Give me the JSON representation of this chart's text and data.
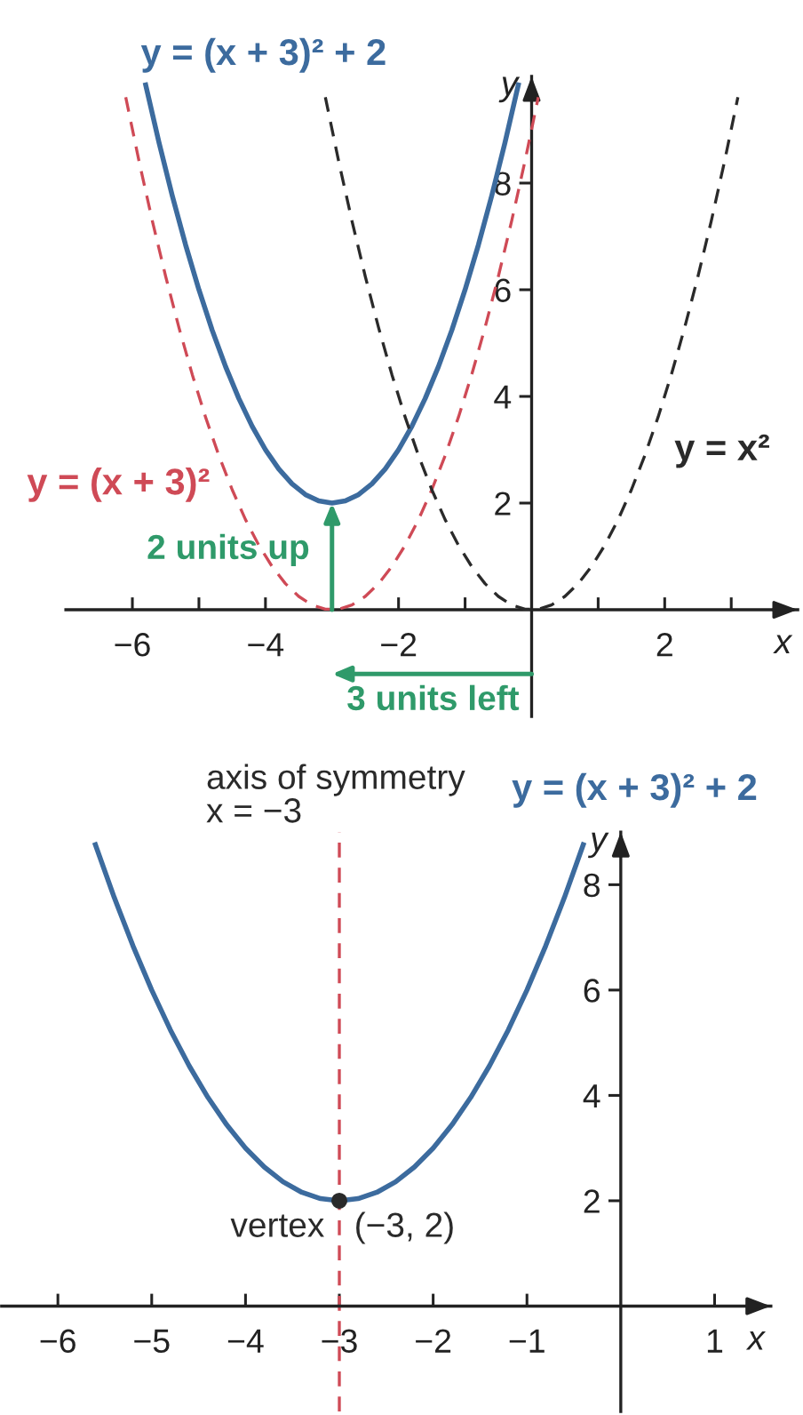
{
  "chart_data": [
    {
      "type": "line",
      "xlabel": "x",
      "ylabel": "y",
      "xlim": [
        -7,
        4
      ],
      "ylim": [
        -2,
        10
      ],
      "xticks": [
        {
          "value": -6,
          "label": "−6"
        },
        {
          "value": -5,
          "label": null
        },
        {
          "value": -4,
          "label": "−4"
        },
        {
          "value": -3,
          "label": null
        },
        {
          "value": -2,
          "label": "−2"
        },
        {
          "value": -1,
          "label": null
        },
        {
          "value": 1,
          "label": null
        },
        2,
        {
          "value": 3,
          "label": null
        }
      ],
      "yticks": [
        2,
        4,
        6,
        8
      ],
      "series": [
        {
          "name": "y = (x + 3)² + 2",
          "color": "#3c6b9e",
          "line_style": "solid",
          "x": [
            -5.8,
            -5.6,
            -5.4,
            -5.2,
            -5.0,
            -4.8,
            -4.6,
            -4.4,
            -4.2,
            -4.0,
            -3.8,
            -3.6,
            -3.4,
            -3.2,
            -3.0,
            -2.8,
            -2.6,
            -2.4,
            -2.2,
            -2.0,
            -1.8,
            -1.6,
            -1.4,
            -1.2,
            -1.0,
            -0.8,
            -0.6,
            -0.4,
            -0.2
          ],
          "values": [
            9.84,
            8.76,
            7.76,
            6.84,
            6,
            5.24,
            4.56,
            3.96,
            3.44,
            3,
            2.64,
            2.36,
            2.16,
            2.04,
            2,
            2.04,
            2.16,
            2.36,
            2.64,
            3,
            3.44,
            3.96,
            4.56,
            5.24,
            6,
            6.84,
            7.76,
            8.76,
            9.84
          ]
        },
        {
          "name": "y = (x + 3)²",
          "color": "#cf4a56",
          "line_style": "dashed",
          "x": [
            -6.1,
            -5.9,
            -5.7,
            -5.5,
            -5.3,
            -5.1,
            -4.9,
            -4.7,
            -4.5,
            -4.3,
            -4.1,
            -3.9,
            -3.7,
            -3.5,
            -3.3,
            -3.1,
            -2.9,
            -2.7,
            -2.5,
            -2.3,
            -2.1,
            -1.9,
            -1.7,
            -1.5,
            -1.3,
            -1.1,
            -0.9,
            -0.7,
            -0.5,
            -0.3,
            -0.1,
            0.1
          ],
          "values": [
            9.61,
            8.41,
            7.29,
            6.25,
            5.29,
            4.41,
            3.61,
            2.89,
            2.25,
            1.69,
            1.21,
            0.81,
            0.49,
            0.25,
            0.09,
            0.01,
            0.01,
            0.09,
            0.25,
            0.49,
            0.81,
            1.21,
            1.69,
            2.25,
            2.89,
            3.61,
            4.41,
            5.29,
            6.25,
            7.29,
            8.41,
            9.61
          ]
        },
        {
          "name": "y = x²",
          "color": "#2a2a2a",
          "line_style": "dashed",
          "x": [
            -3.1,
            -2.9,
            -2.7,
            -2.5,
            -2.3,
            -2.1,
            -1.9,
            -1.7,
            -1.5,
            -1.3,
            -1.1,
            -0.9,
            -0.7,
            -0.5,
            -0.3,
            -0.1,
            0.1,
            0.3,
            0.5,
            0.7,
            0.9,
            1.1,
            1.3,
            1.5,
            1.7,
            1.9,
            2.1,
            2.3,
            2.5,
            2.7,
            2.9,
            3.1
          ],
          "values": [
            9.61,
            8.41,
            7.29,
            6.25,
            5.29,
            4.41,
            3.61,
            2.89,
            2.25,
            1.69,
            1.21,
            0.81,
            0.49,
            0.25,
            0.09,
            0.01,
            0.01,
            0.09,
            0.25,
            0.49,
            0.81,
            1.21,
            1.69,
            2.25,
            2.89,
            3.61,
            4.41,
            5.29,
            6.25,
            7.29,
            8.41,
            9.61
          ]
        }
      ],
      "annotations": [
        "2 units up",
        "3 units left"
      ]
    },
    {
      "type": "line",
      "xlabel": "x",
      "ylabel": "y",
      "xlim": [
        -6.6,
        1.6
      ],
      "ylim": [
        -2,
        9
      ],
      "xticks": [
        {
          "value": -6,
          "label": "−6"
        },
        {
          "value": -5,
          "label": "−5"
        },
        {
          "value": -4,
          "label": "−4"
        },
        {
          "value": -3,
          "label": "−3"
        },
        {
          "value": -2,
          "label": "−2"
        },
        {
          "value": -1,
          "label": "−1"
        },
        1
      ],
      "yticks": [
        2,
        4,
        6,
        8
      ],
      "series": [
        {
          "name": "y = (x + 3)² + 2",
          "color": "#3c6b9e",
          "line_style": "solid",
          "x": [
            -5.6,
            -5.4,
            -5.2,
            -5.0,
            -4.8,
            -4.6,
            -4.4,
            -4.2,
            -4.0,
            -3.8,
            -3.6,
            -3.4,
            -3.2,
            -3.0,
            -2.8,
            -2.6,
            -2.4,
            -2.2,
            -2.0,
            -1.8,
            -1.6,
            -1.4,
            -1.2,
            -1.0,
            -0.8,
            -0.6,
            -0.4
          ],
          "values": [
            8.76,
            7.76,
            6.84,
            6,
            5.24,
            4.56,
            3.96,
            3.44,
            3,
            2.64,
            2.36,
            2.16,
            2.04,
            2,
            2.04,
            2.16,
            2.36,
            2.64,
            3,
            3.44,
            3.96,
            4.56,
            5.24,
            6,
            6.84,
            7.76,
            8.76
          ]
        },
        {
          "type": "scatter",
          "color": "#2a2a2a",
          "marker": "circle",
          "x": [
            -3
          ],
          "values": [
            2
          ],
          "value_labels": [
            "(−3, 2)"
          ]
        }
      ],
      "ref_lines": [
        {
          "axis": "x",
          "value": -3,
          "label": "axis of symmetry\nx = −3",
          "color": "#cf4a56",
          "line_style": "dashed"
        }
      ],
      "annotations": [
        "vertex"
      ]
    }
  ]
}
